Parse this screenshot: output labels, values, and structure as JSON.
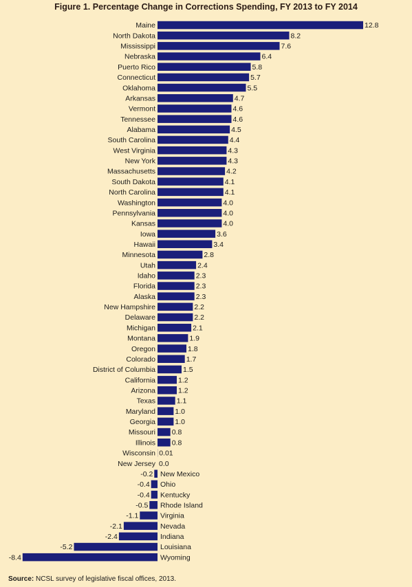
{
  "chart_data": {
    "type": "bar",
    "orientation": "horizontal",
    "title": "Figure 1. Percentage Change in Corrections Spending, FY 2013 to FY 2014",
    "bar_color": "#1b1f7a",
    "background_color": "#fcedc6",
    "categories": [
      "Maine",
      "North Dakota",
      "Mississippi",
      "Nebraska",
      "Puerto Rico",
      "Connecticut",
      "Oklahoma",
      "Arkansas",
      "Vermont",
      "Tennessee",
      "Alabama",
      "South Carolina",
      "West Virginia",
      "New York",
      "Massachusetts",
      "South Dakota",
      "North Carolina",
      "Washington",
      "Pennsylvania",
      "Kansas",
      "Iowa",
      "Hawaii",
      "Minnesota",
      "Utah",
      "Idaho",
      "Florida",
      "Alaska",
      "New Hampshire",
      "Delaware",
      "Michigan",
      "Montana",
      "Oregon",
      "Colorado",
      "District of Columbia",
      "California",
      "Arizona",
      "Texas",
      "Maryland",
      "Georgia",
      "Missouri",
      "Illinois",
      "Wisconsin",
      "New Jersey",
      "New Mexico",
      "Ohio",
      "Kentucky",
      "Rhode Island",
      "Virginia",
      "Nevada",
      "Indiana",
      "Louisiana",
      "Wyoming"
    ],
    "values": [
      12.8,
      8.2,
      7.6,
      6.4,
      5.8,
      5.7,
      5.5,
      4.7,
      4.6,
      4.6,
      4.5,
      4.4,
      4.3,
      4.3,
      4.2,
      4.1,
      4.1,
      4.0,
      4.0,
      4.0,
      3.6,
      3.4,
      2.8,
      2.4,
      2.3,
      2.3,
      2.3,
      2.2,
      2.2,
      2.1,
      1.9,
      1.8,
      1.7,
      1.5,
      1.2,
      1.2,
      1.1,
      1.0,
      1.0,
      0.8,
      0.8,
      0.01,
      0.0,
      -0.2,
      -0.4,
      -0.4,
      -0.5,
      -1.1,
      -2.1,
      -2.4,
      -5.2,
      -8.4
    ],
    "value_labels": [
      "12.8",
      "8.2",
      "7.6",
      "6.4",
      "5.8",
      "5.7",
      "5.5",
      "4.7",
      "4.6",
      "4.6",
      "4.5",
      "4.4",
      "4.3",
      "4.3",
      "4.2",
      "4.1",
      "4.1",
      "4.0",
      "4.0",
      "4.0",
      "3.6",
      "3.4",
      "2.8",
      "2.4",
      "2.3",
      "2.3",
      "2.3",
      "2.2",
      "2.2",
      "2.1",
      "1.9",
      "1.8",
      "1.7",
      "1.5",
      "1.2",
      "1.2",
      "1.1",
      "1.0",
      "1.0",
      "0.8",
      "0.8",
      "0.01",
      "0.0",
      "-0.2",
      "-0.4",
      "-0.4",
      "-0.5",
      "-1.1",
      "-2.1",
      "-2.4",
      "-5.2",
      "-8.4"
    ],
    "xlim": [
      -8.4,
      12.8
    ],
    "grid": false,
    "legend": "none",
    "xlabel": "",
    "ylabel": ""
  },
  "source_note": {
    "label": "Source:",
    "text": " NCSL survey of legislative fiscal offices, 2013."
  }
}
